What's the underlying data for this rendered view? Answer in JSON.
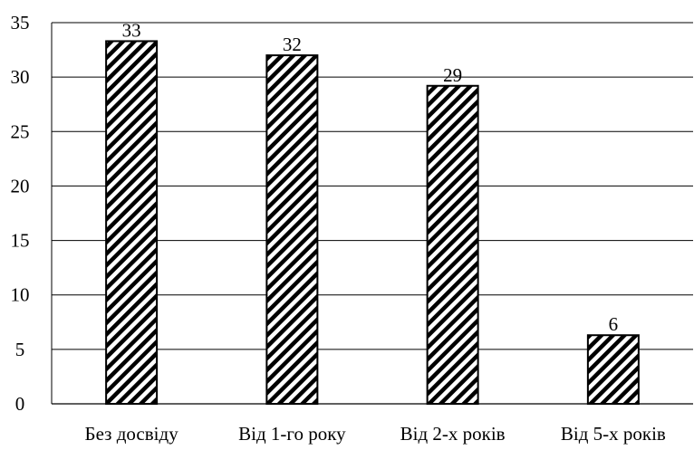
{
  "chart_data": {
    "type": "bar",
    "categories": [
      "Без досвіду",
      "Від 1-го року",
      "Від 2-х років",
      "Від 5-х років"
    ],
    "values": [
      33.3,
      32,
      29.2,
      6.3
    ],
    "data_labels": [
      "33",
      "32",
      "29",
      "6"
    ],
    "title": "",
    "xlabel": "",
    "ylabel": "",
    "ylim": [
      0,
      35
    ],
    "yticks": [
      0,
      5,
      10,
      15,
      20,
      25,
      30,
      35
    ],
    "ytick_labels": [
      "0",
      "5",
      "10",
      "15",
      "20",
      "25",
      "30",
      "35"
    ],
    "grid": "horizontal",
    "legend": "none",
    "bar_fill": "diagonal-hatch",
    "colors": {
      "bar_stroke": "#000000",
      "hatch": "#000000",
      "background": "#ffffff",
      "grid": "#000000"
    }
  }
}
